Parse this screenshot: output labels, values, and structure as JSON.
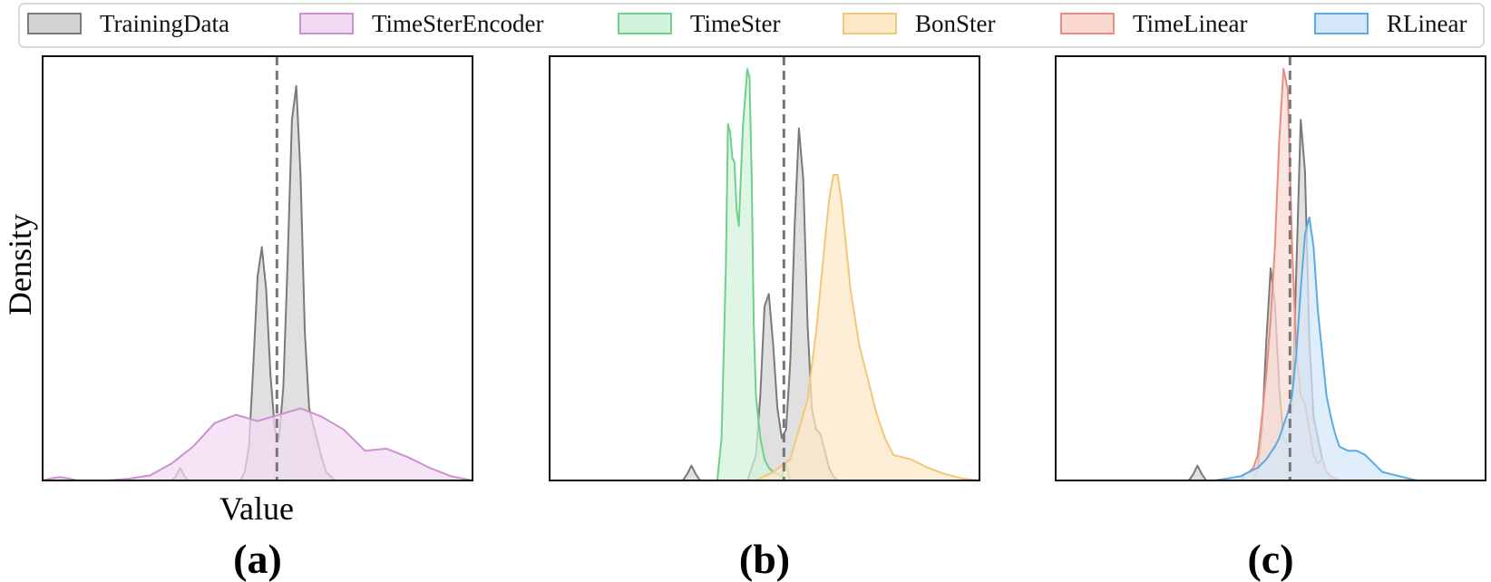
{
  "chart_data": {
    "type": "area",
    "grid": false,
    "legend_position": "top",
    "legend": [
      {
        "key": "training",
        "name": "TrainingData",
        "fill": "#d4d4d4",
        "stroke": "#7a7a7a"
      },
      {
        "key": "timester_encoder",
        "name": "TimeSterEncoder",
        "fill": "#f1d9f1",
        "stroke": "#cf8fd3"
      },
      {
        "key": "timester",
        "name": "TimeSter",
        "fill": "#d3f2dc",
        "stroke": "#6fd089"
      },
      {
        "key": "bonster",
        "name": "BonSter",
        "fill": "#fde8c6",
        "stroke": "#f3c77a"
      },
      {
        "key": "timelinear",
        "name": "TimeLinear",
        "fill": "#fbd9d3",
        "stroke": "#ec8c80"
      },
      {
        "key": "rlinear",
        "name": "RLinear",
        "fill": "#d3e7f8",
        "stroke": "#5aaae6"
      }
    ],
    "ylabel": "Density",
    "xlabel": "Value",
    "panels": [
      {
        "label": "(a)",
        "xlim": [
          0,
          100
        ],
        "ylim": [
          0,
          1
        ],
        "reference_x": 54.5,
        "series": [
          {
            "key": "training",
            "x": [
              30,
              31,
              32,
              33,
              34,
              35,
              46,
              47,
              48,
              49,
              50,
              51,
              52,
              53,
              54,
              55,
              56,
              57,
              58,
              59,
              60,
              61,
              62,
              63,
              64,
              65,
              66,
              67,
              68
            ],
            "y": [
              0.0,
              0.01,
              0.03,
              0.01,
              0.0,
              0.0,
              0.0,
              0.02,
              0.08,
              0.27,
              0.48,
              0.55,
              0.45,
              0.25,
              0.12,
              0.1,
              0.22,
              0.52,
              0.85,
              0.93,
              0.72,
              0.35,
              0.17,
              0.13,
              0.09,
              0.05,
              0.02,
              0.01,
              0.0
            ]
          },
          {
            "key": "timester_encoder",
            "x": [
              0,
              2,
              4,
              6,
              8,
              10,
              15,
              20,
              25,
              30,
              35,
              40,
              45,
              50,
              55,
              60,
              65,
              70,
              75,
              80,
              85,
              90,
              95,
              100
            ],
            "y": [
              0.0,
              0.005,
              0.008,
              0.005,
              0.0,
              0.0,
              0.0,
              0.004,
              0.012,
              0.04,
              0.08,
              0.135,
              0.155,
              0.14,
              0.155,
              0.17,
              0.15,
              0.12,
              0.07,
              0.075,
              0.055,
              0.03,
              0.01,
              0.0
            ]
          }
        ]
      },
      {
        "label": "(b)",
        "xlim": [
          0,
          100
        ],
        "ylim": [
          0,
          1
        ],
        "reference_x": 54.5,
        "series": [
          {
            "key": "training",
            "x": [
              31,
              32,
              33,
              34,
              35,
              46,
              48,
              49,
              50,
              51,
              52,
              53,
              54,
              55,
              56,
              57,
              58,
              59,
              60,
              61,
              62,
              63,
              64,
              65,
              66,
              67,
              68
            ],
            "y": [
              0.0,
              0.015,
              0.035,
              0.015,
              0.0,
              0.0,
              0.06,
              0.2,
              0.41,
              0.44,
              0.32,
              0.17,
              0.1,
              0.12,
              0.28,
              0.6,
              0.83,
              0.71,
              0.37,
              0.17,
              0.12,
              0.11,
              0.07,
              0.03,
              0.01,
              0.0,
              0.0
            ]
          },
          {
            "key": "timester",
            "x": [
              39,
              40,
              41,
              41.5,
              42,
              42.5,
              43,
              43.5,
              44,
              45,
              46,
              46.5,
              47,
              47.5,
              48,
              49,
              50,
              51,
              52,
              53,
              54,
              55,
              56
            ],
            "y": [
              0.0,
              0.1,
              0.5,
              0.84,
              0.82,
              0.76,
              0.75,
              0.64,
              0.6,
              0.84,
              0.97,
              0.95,
              0.72,
              0.37,
              0.2,
              0.1,
              0.05,
              0.03,
              0.02,
              0.015,
              0.01,
              0.04,
              0.0
            ]
          },
          {
            "key": "bonster",
            "x": [
              48,
              52,
              56,
              58,
              60,
              62,
              64,
              65,
              66,
              67,
              68,
              70,
              72,
              74,
              76,
              78,
              80,
              84,
              88,
              92,
              96,
              100
            ],
            "y": [
              0.0,
              0.02,
              0.05,
              0.12,
              0.19,
              0.35,
              0.56,
              0.66,
              0.72,
              0.72,
              0.65,
              0.45,
              0.32,
              0.24,
              0.16,
              0.1,
              0.06,
              0.05,
              0.03,
              0.015,
              0.005,
              0.0
            ]
          }
        ]
      },
      {
        "label": "(c)",
        "xlim": [
          0,
          100
        ],
        "ylim": [
          0,
          1
        ],
        "reference_x": 54.5,
        "series": [
          {
            "key": "training",
            "x": [
              31,
              32,
              33,
              34,
              35,
              46,
              47,
              48,
              49,
              50,
              51,
              52,
              53,
              54,
              55,
              56,
              57,
              58,
              59,
              60,
              61,
              62,
              63,
              64,
              65,
              66
            ],
            "y": [
              0.0,
              0.015,
              0.035,
              0.015,
              0.0,
              0.0,
              0.03,
              0.12,
              0.33,
              0.5,
              0.42,
              0.22,
              0.1,
              0.08,
              0.18,
              0.5,
              0.85,
              0.73,
              0.33,
              0.15,
              0.1,
              0.05,
              0.02,
              0.01,
              0.0,
              0.0
            ]
          },
          {
            "key": "timelinear",
            "x": [
              43,
              44,
              45,
              46,
              47,
              48,
              49,
              50,
              51,
              52,
              53,
              54,
              55,
              56,
              57,
              58,
              59,
              60,
              61,
              62,
              63,
              64,
              66
            ],
            "y": [
              0.0,
              0.015,
              0.02,
              0.03,
              0.06,
              0.15,
              0.25,
              0.38,
              0.55,
              0.8,
              0.97,
              0.92,
              0.55,
              0.3,
              0.2,
              0.18,
              0.12,
              0.06,
              0.04,
              0.05,
              0.02,
              0.01,
              0.0
            ]
          },
          {
            "key": "rlinear",
            "x": [
              37,
              40,
              43,
              45,
              47,
              49,
              51,
              52,
              53,
              54,
              55,
              56,
              57,
              58,
              59,
              60,
              61,
              62,
              63,
              64,
              65,
              66,
              68,
              70,
              72,
              74,
              76,
              78,
              80,
              82,
              84,
              86,
              88
            ],
            "y": [
              0.0,
              0.005,
              0.01,
              0.02,
              0.03,
              0.05,
              0.08,
              0.1,
              0.13,
              0.16,
              0.2,
              0.3,
              0.45,
              0.58,
              0.62,
              0.55,
              0.4,
              0.3,
              0.2,
              0.15,
              0.11,
              0.08,
              0.07,
              0.07,
              0.06,
              0.04,
              0.02,
              0.015,
              0.01,
              0.005,
              0.0,
              0.0,
              0.0
            ]
          }
        ]
      }
    ]
  }
}
